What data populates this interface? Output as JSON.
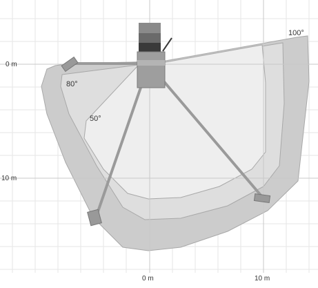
{
  "axes": {
    "y_labels": [
      "0 m",
      "10 m"
    ],
    "x_labels": [
      "0 m",
      "10 m"
    ]
  },
  "curves": [
    "100°",
    "80°",
    "50°"
  ],
  "colors": {
    "grid_minor": "#e6e6e6",
    "grid_major": "#c8c8c8",
    "zone_outer": "#cccccc",
    "zone_middle": "#dedede",
    "zone_inner": "#eeeeee",
    "beam": "#9a9a9a",
    "mast": "#8a8a8a",
    "mast_dark": "#3a3a3a"
  }
}
